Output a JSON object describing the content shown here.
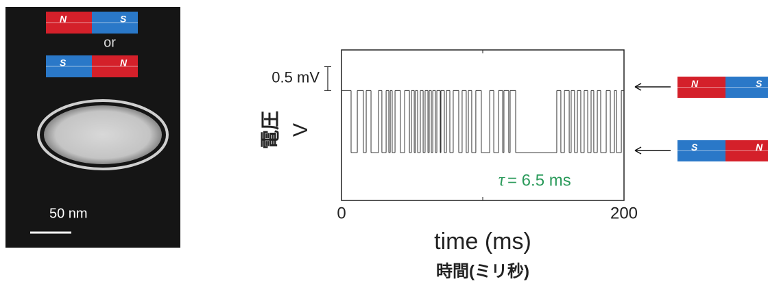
{
  "image": {
    "magnets": [
      {
        "left": "N",
        "right": "S"
      },
      {
        "left": "S",
        "right": "N"
      }
    ],
    "or_label": "or",
    "scale_label": "50 nm"
  },
  "states": [
    {
      "left": "N",
      "right": "S"
    },
    {
      "left": "S",
      "right": "N"
    }
  ],
  "chart_data": {
    "type": "step",
    "xlabel": "time (ms)",
    "xlabel_ja": "時間(ミリ秒)",
    "ylabel": "V",
    "ylabel_ja": "電圧",
    "tau_symbol": "τ",
    "annotation": "= 6.5 ms",
    "xlim": [
      0,
      200
    ],
    "xticks": [
      0,
      200
    ],
    "minor_xticks": [
      100
    ],
    "ylim": [
      0,
      3.15
    ],
    "scale_bar": {
      "label": "0.5 mV",
      "from": 2.3,
      "to": 2.8
    },
    "series": [
      {
        "color": "#333333",
        "x": [
          0,
          6.8,
          11.2,
          15.5,
          17.5,
          20.9,
          26.2,
          28.6,
          31.6,
          33.5,
          34.5,
          35.9,
          37.9,
          41.7,
          44.7,
          48.1,
          49.5,
          51.5,
          52.4,
          53.9,
          55.8,
          57.8,
          59.2,
          61.2,
          62.1,
          63.6,
          64.6,
          66.5,
          67.5,
          69.9,
          70.4,
          72.8,
          74.3,
          76.7,
          79.1,
          83.0,
          85.4,
          88.3,
          89.8,
          92.2,
          95.1,
          99.0,
          104.9,
          107.8,
          111.2,
          114.1,
          115.0,
          118.4,
          119.4,
          123.3,
          152.4,
          155.3,
          157.8,
          161.2,
          162.6,
          165.0,
          167.0,
          169.4,
          171.8,
          174.3,
          176.7,
          178.6,
          181.1,
          183.5,
          187.4,
          190.3,
          193.2,
          194.7,
          198.1
        ],
        "values": [
          2.3,
          1.0,
          2.3,
          1.0,
          2.3,
          1.0,
          2.3,
          1.0,
          2.3,
          1.0,
          2.3,
          1.0,
          2.3,
          1.0,
          2.3,
          1.0,
          2.3,
          1.0,
          2.3,
          1.0,
          2.3,
          1.0,
          2.3,
          1.0,
          2.3,
          1.0,
          2.3,
          1.0,
          2.3,
          1.0,
          2.3,
          1.0,
          2.3,
          1.0,
          2.3,
          1.0,
          2.3,
          1.0,
          2.3,
          1.0,
          2.3,
          1.0,
          2.3,
          1.0,
          2.3,
          1.0,
          2.3,
          1.0,
          2.3,
          1.0,
          2.3,
          1.0,
          2.3,
          1.0,
          2.3,
          1.0,
          2.3,
          1.0,
          2.3,
          1.0,
          2.3,
          1.0,
          2.3,
          1.0,
          2.3,
          1.0,
          2.3,
          1.0,
          2.3
        ]
      }
    ]
  }
}
